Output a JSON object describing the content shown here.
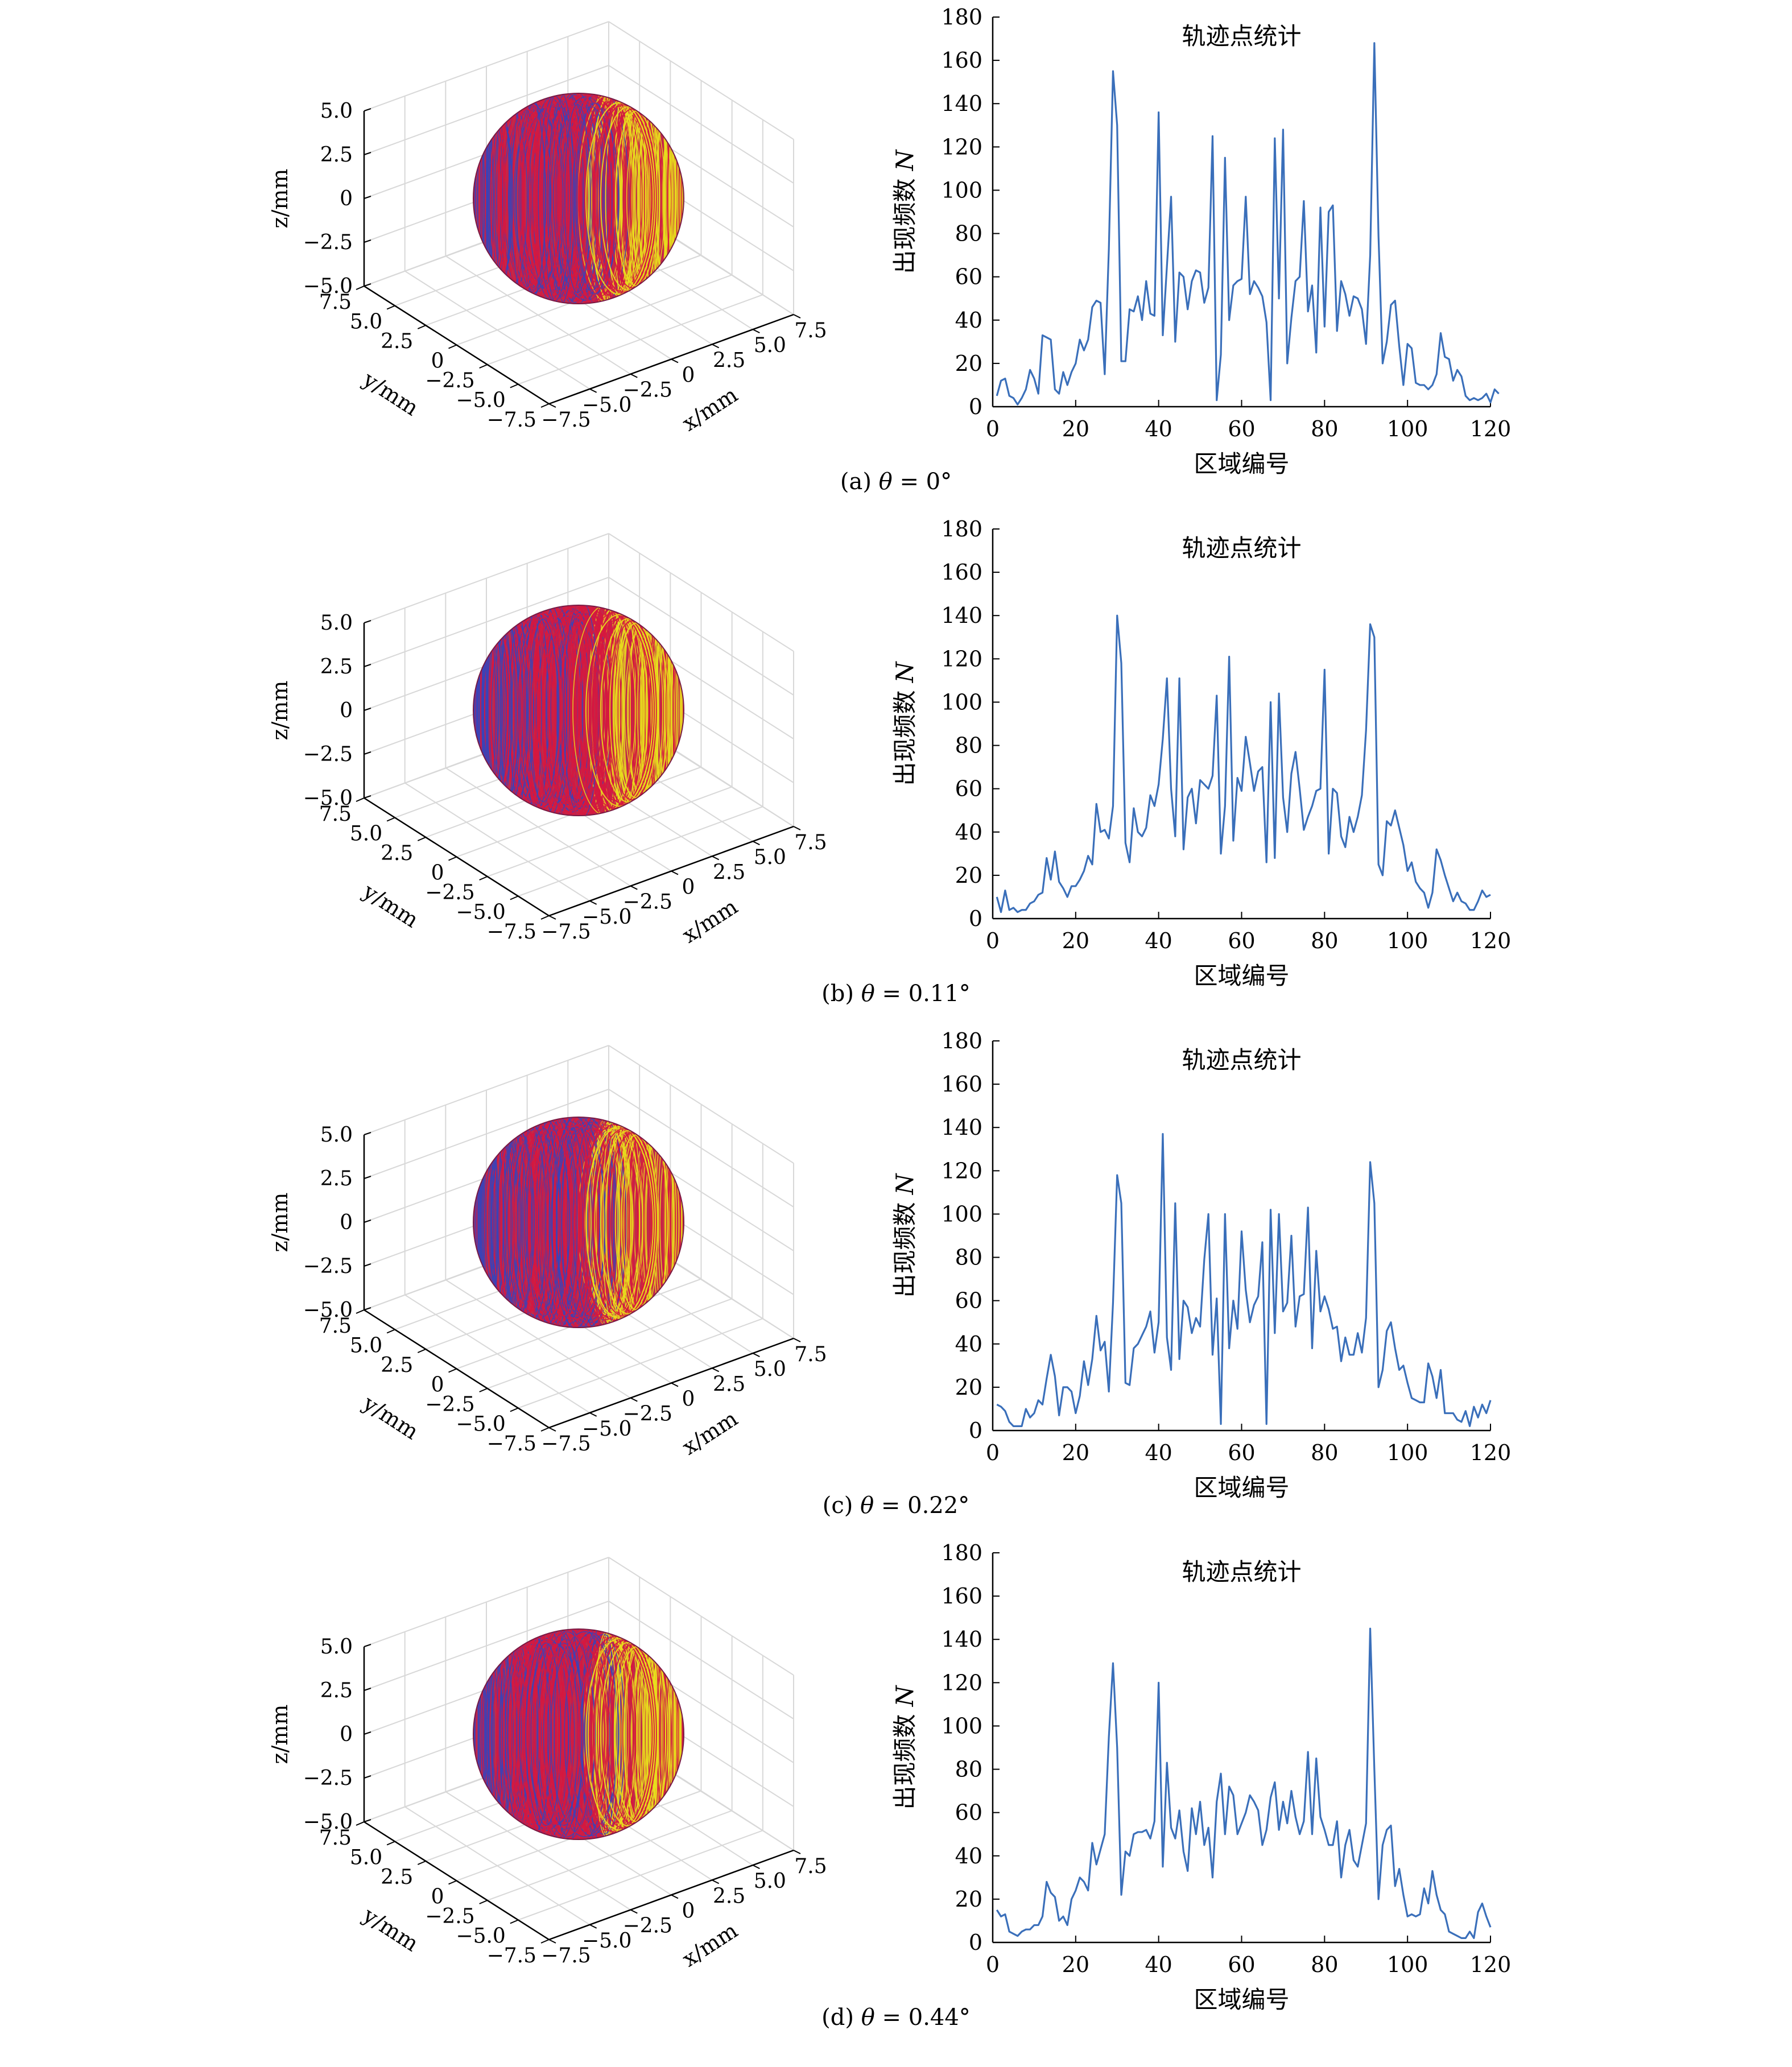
{
  "chart_data": [
    {
      "panel": "a",
      "caption": "(a) θ = 0°",
      "sphere": {
        "type": "3d-trajectory",
        "axes": {
          "x": {
            "label": "x/mm",
            "ticks": [
              "−7.5",
              "−5.0",
              "−2.5",
              "0",
              "2.5",
              "5.0",
              "7.5"
            ],
            "range": [
              -7.5,
              7.5
            ]
          },
          "y": {
            "label": "y/mm",
            "ticks": [
              "7.5",
              "5.0",
              "2.5",
              "0",
              "−2.5",
              "−5.0",
              "−7.5"
            ],
            "range": [
              -7.5,
              7.5
            ]
          },
          "z": {
            "label": "z/mm",
            "ticks": [
              "5.0",
              "2.5",
              "0",
              "−2.5",
              "−5.0"
            ],
            "range": [
              -5.0,
              5.0
            ]
          }
        },
        "grid": true,
        "colors": [
          "#3a43b8",
          "#d6173f",
          "#e8df1c"
        ]
      },
      "line": {
        "type": "line",
        "title": "轨迹点统计",
        "xlabel": "区域编号",
        "ylabel": "出现频数 N",
        "xlim": [
          0,
          120
        ],
        "ylim": [
          0,
          180
        ],
        "xticks": [
          "0",
          "20",
          "40",
          "60",
          "80",
          "100",
          "120"
        ],
        "yticks": [
          "0",
          "20",
          "40",
          "60",
          "80",
          "100",
          "120",
          "140",
          "160",
          "180"
        ],
        "color": "#3a6fba",
        "values": [
          5,
          12,
          13,
          5,
          4,
          1,
          4,
          8,
          17,
          13,
          6,
          33,
          32,
          31,
          8,
          6,
          16,
          10,
          16,
          20,
          31,
          26,
          31,
          46,
          49,
          48,
          15,
          73,
          155,
          130,
          21,
          21,
          45,
          44,
          51,
          40,
          58,
          43,
          42,
          136,
          33,
          65,
          97,
          30,
          62,
          60,
          45,
          58,
          63,
          62,
          48,
          55,
          125,
          3,
          24,
          115,
          40,
          56,
          58,
          59,
          97,
          52,
          58,
          55,
          51,
          39,
          3,
          124,
          50,
          128,
          20,
          41,
          58,
          60,
          95,
          44,
          56,
          25,
          92,
          37,
          90,
          93,
          35,
          58,
          52,
          42,
          51,
          50,
          45,
          29,
          70,
          168,
          79,
          20,
          30,
          47,
          49,
          28,
          10,
          29,
          27,
          11,
          10,
          10,
          8,
          10,
          15,
          34,
          23,
          22,
          12,
          17,
          14,
          5,
          3,
          4,
          3,
          4,
          6,
          2,
          8,
          6
        ]
      }
    },
    {
      "panel": "b",
      "caption": "(b) θ = 0.11°",
      "sphere": {
        "type": "3d-trajectory",
        "axes": {
          "x": {
            "label": "x/mm",
            "ticks": [
              "−7.5",
              "−5.0",
              "−2.5",
              "0",
              "2.5",
              "5.0",
              "7.5"
            ],
            "range": [
              -7.5,
              7.5
            ]
          },
          "y": {
            "label": "y/mm",
            "ticks": [
              "7.5",
              "5.0",
              "2.5",
              "0",
              "−2.5",
              "−5.0",
              "−7.5"
            ],
            "range": [
              -7.5,
              7.5
            ]
          },
          "z": {
            "label": "z/mm",
            "ticks": [
              "5.0",
              "2.5",
              "0",
              "−2.5",
              "−5.0"
            ],
            "range": [
              -5.0,
              5.0
            ]
          }
        },
        "grid": true,
        "colors": [
          "#3a43b8",
          "#d6173f",
          "#e8df1c"
        ]
      },
      "line": {
        "type": "line",
        "title": "轨迹点统计",
        "xlabel": "区域编号",
        "ylabel": "出现频数 N",
        "xlim": [
          0,
          120
        ],
        "ylim": [
          0,
          180
        ],
        "xticks": [
          "0",
          "20",
          "40",
          "60",
          "80",
          "100",
          "120"
        ],
        "yticks": [
          "0",
          "20",
          "40",
          "60",
          "80",
          "100",
          "120",
          "140",
          "160",
          "180"
        ],
        "color": "#3a6fba",
        "values": [
          10,
          3,
          13,
          4,
          5,
          3,
          4,
          4,
          7,
          8,
          11,
          12,
          28,
          18,
          31,
          17,
          14,
          10,
          15,
          15,
          18,
          22,
          29,
          25,
          53,
          40,
          41,
          37,
          52,
          140,
          118,
          35,
          26,
          51,
          40,
          38,
          42,
          57,
          52,
          62,
          83,
          111,
          60,
          38,
          111,
          32,
          56,
          60,
          44,
          64,
          62,
          60,
          66,
          103,
          30,
          52,
          121,
          36,
          65,
          59,
          84,
          72,
          59,
          68,
          70,
          26,
          100,
          28,
          104,
          56,
          40,
          67,
          77,
          60,
          41,
          47,
          52,
          59,
          60,
          115,
          30,
          60,
          58,
          38,
          33,
          47,
          40,
          47,
          57,
          87,
          136,
          130,
          25,
          20,
          45,
          43,
          50,
          42,
          34,
          22,
          26,
          17,
          14,
          12,
          5,
          12,
          32,
          27,
          20,
          14,
          8,
          12,
          8,
          7,
          4,
          4,
          8,
          13,
          10,
          11
        ]
      }
    },
    {
      "panel": "c",
      "caption": "(c) θ = 0.22°",
      "sphere": {
        "type": "3d-trajectory",
        "axes": {
          "x": {
            "label": "x/mm",
            "ticks": [
              "−7.5",
              "−5.0",
              "−2.5",
              "0",
              "2.5",
              "5.0",
              "7.5"
            ],
            "range": [
              -7.5,
              7.5
            ]
          },
          "y": {
            "label": "y/mm",
            "ticks": [
              "7.5",
              "5.0",
              "2.5",
              "0",
              "−2.5",
              "−5.0",
              "−7.5"
            ],
            "range": [
              -7.5,
              7.5
            ]
          },
          "z": {
            "label": "z/mm",
            "ticks": [
              "5.0",
              "2.5",
              "0",
              "−2.5",
              "−5.0"
            ],
            "range": [
              -5.0,
              5.0
            ]
          }
        },
        "grid": true,
        "colors": [
          "#3a43b8",
          "#d6173f",
          "#e8df1c"
        ]
      },
      "line": {
        "type": "line",
        "title": "轨迹点统计",
        "xlabel": "区域编号",
        "ylabel": "出现频数 N",
        "xlim": [
          0,
          120
        ],
        "ylim": [
          0,
          180
        ],
        "xticks": [
          "0",
          "20",
          "40",
          "60",
          "80",
          "100",
          "120"
        ],
        "yticks": [
          "0",
          "20",
          "40",
          "60",
          "80",
          "100",
          "120",
          "140",
          "160",
          "180"
        ],
        "color": "#3a6fba",
        "values": [
          12,
          11,
          9,
          4,
          2,
          2,
          2,
          10,
          6,
          8,
          14,
          12,
          24,
          35,
          25,
          7,
          20,
          20,
          18,
          8,
          16,
          32,
          21,
          33,
          53,
          37,
          41,
          18,
          59,
          118,
          105,
          22,
          21,
          38,
          40,
          44,
          48,
          55,
          36,
          50,
          137,
          43,
          28,
          105,
          33,
          60,
          57,
          45,
          52,
          48,
          79,
          100,
          35,
          61,
          3,
          100,
          38,
          60,
          47,
          92,
          65,
          50,
          58,
          62,
          87,
          3,
          102,
          45,
          100,
          55,
          59,
          90,
          48,
          62,
          63,
          103,
          38,
          83,
          55,
          62,
          56,
          47,
          48,
          32,
          43,
          35,
          35,
          45,
          36,
          52,
          124,
          105,
          20,
          28,
          46,
          50,
          38,
          28,
          30,
          22,
          15,
          14,
          13,
          13,
          31,
          25,
          15,
          28,
          8,
          8,
          8,
          5,
          4,
          9,
          2,
          11,
          6,
          12,
          8,
          14
        ]
      }
    },
    {
      "panel": "d",
      "caption": "(d) θ = 0.44°",
      "sphere": {
        "type": "3d-trajectory",
        "axes": {
          "x": {
            "label": "x/mm",
            "ticks": [
              "−7.5",
              "−5.0",
              "−2.5",
              "0",
              "2.5",
              "5.0",
              "7.5"
            ],
            "range": [
              -7.5,
              7.5
            ]
          },
          "y": {
            "label": "y/mm",
            "ticks": [
              "7.5",
              "5.0",
              "2.5",
              "0",
              "−2.5",
              "−5.0",
              "−7.5"
            ],
            "range": [
              -7.5,
              7.5
            ]
          },
          "z": {
            "label": "z/mm",
            "ticks": [
              "5.0",
              "2.5",
              "0",
              "−2.5",
              "−5.0"
            ],
            "range": [
              -5.0,
              5.0
            ]
          }
        },
        "grid": true,
        "colors": [
          "#3a43b8",
          "#d6173f",
          "#e8df1c"
        ]
      },
      "line": {
        "type": "line",
        "title": "轨迹点统计",
        "xlabel": "区域编号",
        "ylabel": "出现频数 N",
        "xlim": [
          0,
          120
        ],
        "ylim": [
          0,
          180
        ],
        "xticks": [
          "0",
          "20",
          "40",
          "60",
          "80",
          "100",
          "120"
        ],
        "yticks": [
          "0",
          "20",
          "40",
          "60",
          "80",
          "100",
          "120",
          "140",
          "160",
          "180"
        ],
        "color": "#3a6fba",
        "values": [
          15,
          12,
          13,
          5,
          4,
          3,
          5,
          6,
          6,
          8,
          8,
          12,
          28,
          23,
          21,
          10,
          12,
          8,
          20,
          24,
          30,
          28,
          24,
          46,
          36,
          43,
          50,
          95,
          129,
          90,
          22,
          42,
          40,
          50,
          51,
          51,
          52,
          48,
          56,
          120,
          35,
          83,
          53,
          48,
          61,
          42,
          33,
          62,
          50,
          65,
          45,
          53,
          30,
          65,
          78,
          50,
          72,
          68,
          50,
          55,
          60,
          68,
          65,
          61,
          45,
          52,
          67,
          74,
          52,
          65,
          55,
          70,
          58,
          50,
          56,
          88,
          50,
          85,
          58,
          52,
          45,
          45,
          56,
          30,
          45,
          52,
          38,
          35,
          45,
          55,
          145,
          80,
          20,
          45,
          52,
          54,
          26,
          34,
          22,
          12,
          13,
          12,
          13,
          25,
          18,
          33,
          22,
          15,
          13,
          5,
          4,
          3,
          2,
          2,
          5,
          2,
          14,
          18,
          12,
          7
        ]
      }
    }
  ]
}
